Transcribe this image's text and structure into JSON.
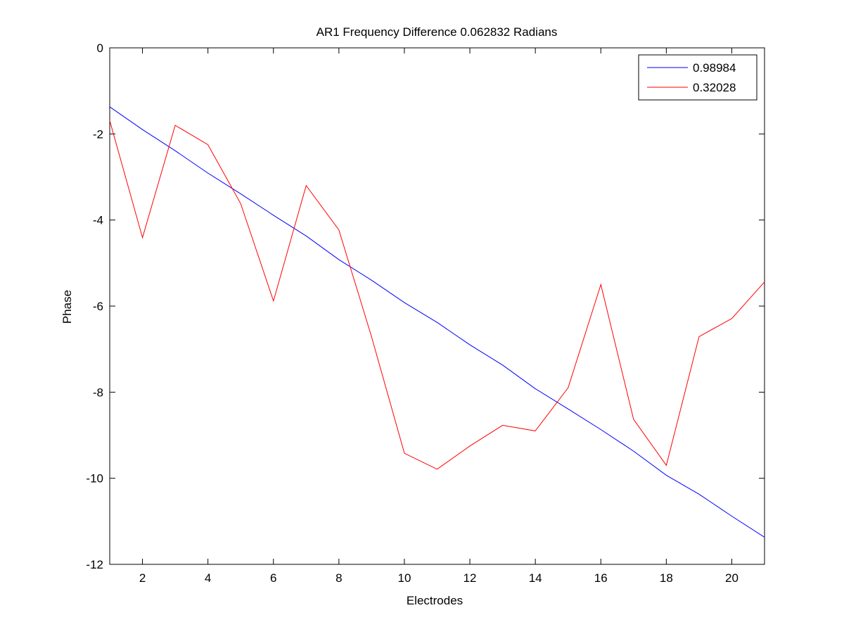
{
  "chart_data": {
    "type": "line",
    "title": "AR1 Frequency Difference 0.062832 Radians",
    "xlabel": "Electrodes",
    "ylabel": "Phase",
    "xlim": [
      1,
      21
    ],
    "ylim": [
      -12,
      0
    ],
    "xticks": [
      2,
      4,
      6,
      8,
      10,
      12,
      14,
      16,
      18,
      20
    ],
    "yticks": [
      0,
      -2,
      -4,
      -6,
      -8,
      -10,
      -12
    ],
    "grid": false,
    "legend_position": "top-right",
    "x": [
      1,
      2,
      3,
      4,
      5,
      6,
      7,
      8,
      9,
      10,
      11,
      12,
      13,
      14,
      15,
      16,
      17,
      18,
      19,
      20,
      21
    ],
    "series": [
      {
        "name": "0.98984",
        "color": "#0000ff",
        "values": [
          -1.37,
          -1.9,
          -2.39,
          -2.91,
          -3.39,
          -3.89,
          -4.37,
          -4.92,
          -5.4,
          -5.92,
          -6.38,
          -6.9,
          -7.37,
          -7.92,
          -8.39,
          -8.87,
          -9.37,
          -9.93,
          -10.37,
          -10.88,
          -11.37
        ]
      },
      {
        "name": "0.32028",
        "color": "#ff0000",
        "values": [
          -1.69,
          -4.41,
          -1.8,
          -2.25,
          -3.62,
          -5.88,
          -3.2,
          -4.23,
          -6.72,
          -9.42,
          -9.79,
          -9.25,
          -8.77,
          -8.9,
          -7.9,
          -5.5,
          -8.63,
          -9.7,
          -6.71,
          -6.29,
          -5.44
        ]
      }
    ]
  }
}
